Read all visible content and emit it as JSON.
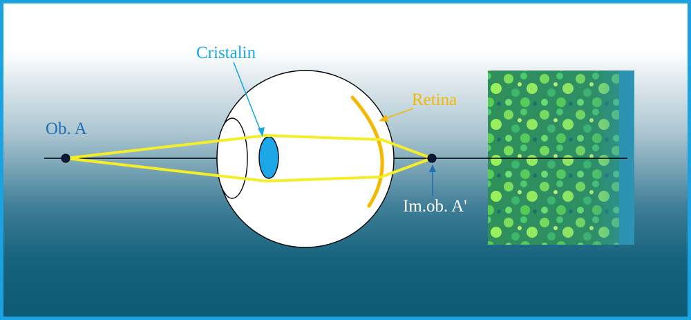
{
  "labels": {
    "object": "Ob. A",
    "lens": "Cristalin",
    "retina": "Retina",
    "image": "Im.ob. A'"
  },
  "colors": {
    "frame": "#1aa3e0",
    "label_blue": "#1f6fb5",
    "lens_fill": "#1ea7e8",
    "lens_label": "#1aa8e3",
    "retina": "#f5b800",
    "rays": "#f4ee2a",
    "axis": "#000000"
  }
}
